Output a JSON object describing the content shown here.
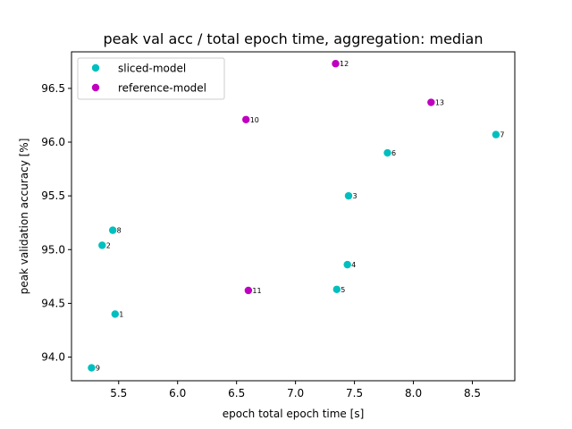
{
  "chart_data": {
    "type": "scatter",
    "title": "peak val acc / total epoch time, aggregation: median",
    "xlabel": "epoch total epoch time [s]",
    "ylabel": "peak validation accuracy [%]",
    "xlim": [
      5.1,
      8.86
    ],
    "ylim": [
      93.78,
      96.84
    ],
    "xticks": [
      5.5,
      6.0,
      6.5,
      7.0,
      7.5,
      8.0,
      8.5
    ],
    "xtick_labels": [
      "5.5",
      "6.0",
      "6.5",
      "7.0",
      "7.5",
      "8.0",
      "8.5"
    ],
    "yticks": [
      94.0,
      94.5,
      95.0,
      95.5,
      96.0,
      96.5
    ],
    "ytick_labels": [
      "94.0",
      "94.5",
      "95.0",
      "95.5",
      "96.0",
      "96.5"
    ],
    "grid": false,
    "legend_position": "upper-left",
    "series": [
      {
        "name": "sliced-model",
        "color": "#00bfbf",
        "points": [
          {
            "x": 5.47,
            "y": 94.4,
            "label": "1"
          },
          {
            "x": 5.36,
            "y": 95.04,
            "label": "2"
          },
          {
            "x": 7.45,
            "y": 95.5,
            "label": "3"
          },
          {
            "x": 7.44,
            "y": 94.86,
            "label": "4"
          },
          {
            "x": 7.35,
            "y": 94.63,
            "label": "5"
          },
          {
            "x": 7.78,
            "y": 95.9,
            "label": "6"
          },
          {
            "x": 8.7,
            "y": 96.07,
            "label": "7"
          },
          {
            "x": 5.45,
            "y": 95.18,
            "label": "8"
          },
          {
            "x": 5.27,
            "y": 93.9,
            "label": "9"
          }
        ]
      },
      {
        "name": "reference-model",
        "color": "#bf00bf",
        "points": [
          {
            "x": 6.58,
            "y": 96.21,
            "label": "10"
          },
          {
            "x": 6.6,
            "y": 94.62,
            "label": "11"
          },
          {
            "x": 7.34,
            "y": 96.73,
            "label": "12"
          },
          {
            "x": 8.15,
            "y": 96.37,
            "label": "13"
          }
        ]
      }
    ]
  }
}
